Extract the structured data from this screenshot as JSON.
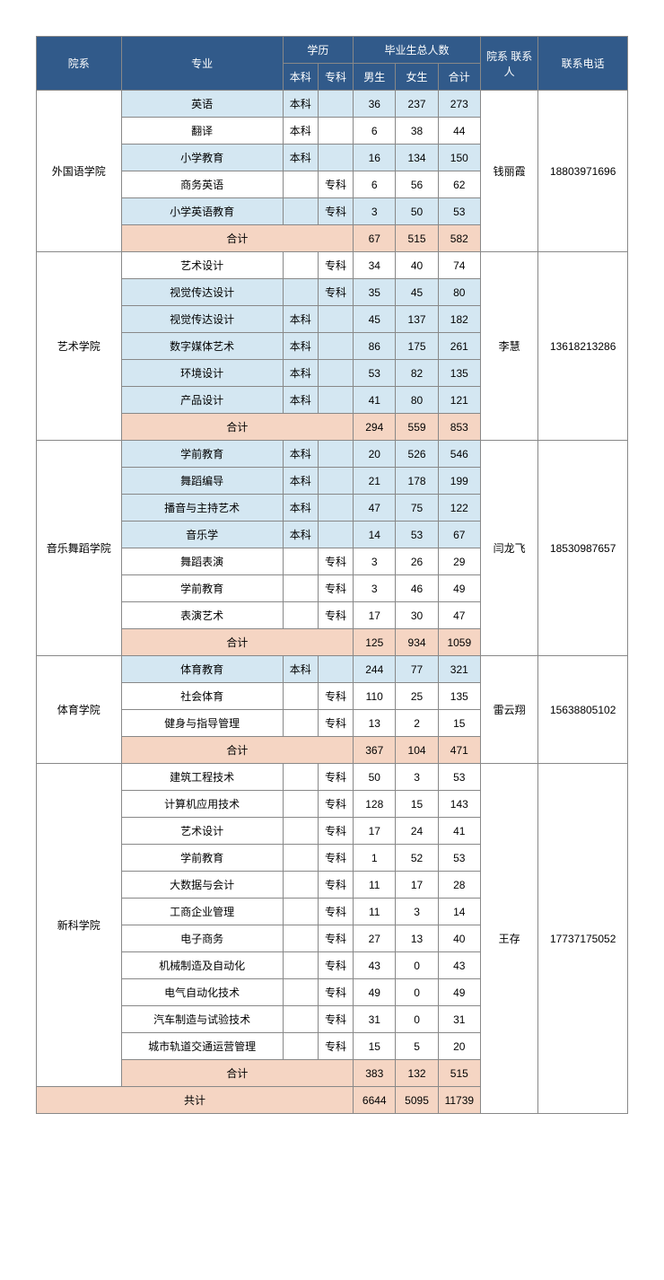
{
  "headers": {
    "dept": "院系",
    "major": "专业",
    "degree": "学历",
    "degree_bk": "本科",
    "degree_zk": "专科",
    "grad_total": "毕业生总人数",
    "male": "男生",
    "female": "女生",
    "sum": "合计",
    "contact_label": "院系\n联系人",
    "phone": "联系电话"
  },
  "labels": {
    "subtotal": "合计",
    "grandtotal": "共计",
    "bk": "本科",
    "zk": "专科"
  },
  "departments": [
    {
      "name": "外国语学院",
      "contact": "钱丽霞",
      "phone": "18803971696",
      "majors": [
        {
          "name": "英语",
          "bk": true,
          "zk": false,
          "m": 36,
          "f": 237,
          "t": 273,
          "blue": true
        },
        {
          "name": "翻译",
          "bk": true,
          "zk": false,
          "m": 6,
          "f": 38,
          "t": 44,
          "blue": false
        },
        {
          "name": "小学教育",
          "bk": true,
          "zk": false,
          "m": 16,
          "f": 134,
          "t": 150,
          "blue": true
        },
        {
          "name": "商务英语",
          "bk": false,
          "zk": true,
          "m": 6,
          "f": 56,
          "t": 62,
          "blue": false
        },
        {
          "name": "小学英语教育",
          "bk": false,
          "zk": true,
          "m": 3,
          "f": 50,
          "t": 53,
          "blue": true
        }
      ],
      "subtotal": {
        "m": 67,
        "f": 515,
        "t": 582
      }
    },
    {
      "name": "艺术学院",
      "contact": "李慧",
      "phone": "13618213286",
      "majors": [
        {
          "name": "艺术设计",
          "bk": false,
          "zk": true,
          "m": 34,
          "f": 40,
          "t": 74,
          "blue": false
        },
        {
          "name": "视觉传达设计",
          "bk": false,
          "zk": true,
          "m": 35,
          "f": 45,
          "t": 80,
          "blue": true
        },
        {
          "name": "视觉传达设计",
          "bk": true,
          "zk": false,
          "m": 45,
          "f": 137,
          "t": 182,
          "blue": true
        },
        {
          "name": "数字媒体艺术",
          "bk": true,
          "zk": false,
          "m": 86,
          "f": 175,
          "t": 261,
          "blue": true
        },
        {
          "name": "环境设计",
          "bk": true,
          "zk": false,
          "m": 53,
          "f": 82,
          "t": 135,
          "blue": true
        },
        {
          "name": "产品设计",
          "bk": true,
          "zk": false,
          "m": 41,
          "f": 80,
          "t": 121,
          "blue": true
        }
      ],
      "subtotal": {
        "m": 294,
        "f": 559,
        "t": 853
      }
    },
    {
      "name": "音乐舞蹈学院",
      "contact": "闫龙飞",
      "phone": "18530987657",
      "majors": [
        {
          "name": "学前教育",
          "bk": true,
          "zk": false,
          "m": 20,
          "f": 526,
          "t": 546,
          "blue": true
        },
        {
          "name": "舞蹈编导",
          "bk": true,
          "zk": false,
          "m": 21,
          "f": 178,
          "t": 199,
          "blue": true
        },
        {
          "name": "播音与主持艺术",
          "bk": true,
          "zk": false,
          "m": 47,
          "f": 75,
          "t": 122,
          "blue": true
        },
        {
          "name": "音乐学",
          "bk": true,
          "zk": false,
          "m": 14,
          "f": 53,
          "t": 67,
          "blue": true
        },
        {
          "name": "舞蹈表演",
          "bk": false,
          "zk": true,
          "m": 3,
          "f": 26,
          "t": 29,
          "blue": false
        },
        {
          "name": "学前教育",
          "bk": false,
          "zk": true,
          "m": 3,
          "f": 46,
          "t": 49,
          "blue": false
        },
        {
          "name": "表演艺术",
          "bk": false,
          "zk": true,
          "m": 17,
          "f": 30,
          "t": 47,
          "blue": false
        }
      ],
      "subtotal": {
        "m": 125,
        "f": 934,
        "t": 1059
      }
    },
    {
      "name": "体育学院",
      "contact": "雷云翔",
      "phone": "15638805102",
      "majors": [
        {
          "name": "体育教育",
          "bk": true,
          "zk": false,
          "m": 244,
          "f": 77,
          "t": 321,
          "blue": true
        },
        {
          "name": "社会体育",
          "bk": false,
          "zk": true,
          "m": 110,
          "f": 25,
          "t": 135,
          "blue": false
        },
        {
          "name": "健身与指导管理",
          "bk": false,
          "zk": true,
          "m": 13,
          "f": 2,
          "t": 15,
          "blue": false
        }
      ],
      "subtotal": {
        "m": 367,
        "f": 104,
        "t": 471
      }
    },
    {
      "name": "新科学院",
      "contact": "王存",
      "phone": "17737175052",
      "majors": [
        {
          "name": "建筑工程技术",
          "bk": false,
          "zk": true,
          "m": 50,
          "f": 3,
          "t": 53,
          "blue": false
        },
        {
          "name": "计算机应用技术",
          "bk": false,
          "zk": true,
          "m": 128,
          "f": 15,
          "t": 143,
          "blue": false
        },
        {
          "name": "艺术设计",
          "bk": false,
          "zk": true,
          "m": 17,
          "f": 24,
          "t": 41,
          "blue": false
        },
        {
          "name": "学前教育",
          "bk": false,
          "zk": true,
          "m": 1,
          "f": 52,
          "t": 53,
          "blue": false
        },
        {
          "name": "大数据与会计",
          "bk": false,
          "zk": true,
          "m": 11,
          "f": 17,
          "t": 28,
          "blue": false
        },
        {
          "name": "工商企业管理",
          "bk": false,
          "zk": true,
          "m": 11,
          "f": 3,
          "t": 14,
          "blue": false
        },
        {
          "name": "电子商务",
          "bk": false,
          "zk": true,
          "m": 27,
          "f": 13,
          "t": 40,
          "blue": false
        },
        {
          "name": "机械制造及自动化",
          "bk": false,
          "zk": true,
          "m": 43,
          "f": 0,
          "t": 43,
          "blue": false
        },
        {
          "name": "电气自动化技术",
          "bk": false,
          "zk": true,
          "m": 49,
          "f": 0,
          "t": 49,
          "blue": false
        },
        {
          "name": "汽车制造与试验技术",
          "bk": false,
          "zk": true,
          "m": 31,
          "f": 0,
          "t": 31,
          "blue": false
        },
        {
          "name": "城市轨道交通运营管理",
          "bk": false,
          "zk": true,
          "m": 15,
          "f": 5,
          "t": 20,
          "blue": false
        }
      ],
      "subtotal": {
        "m": 383,
        "f": 132,
        "t": 515
      }
    }
  ],
  "grandtotal": {
    "m": 6644,
    "f": 5095,
    "t": 11739
  },
  "colors": {
    "header_bg": "#315a8a",
    "header_fg": "#ffffff",
    "blue_row": "#d4e7f2",
    "subtotal_row": "#f5d5c3",
    "border": "#888888"
  }
}
